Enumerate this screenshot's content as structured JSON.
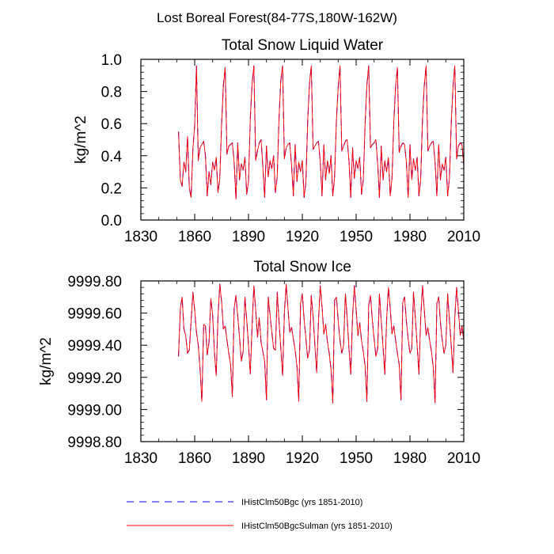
{
  "page": {
    "title": "Lost Boreal Forest(84-77S,180W-162W)"
  },
  "legend": {
    "placement": "bottom",
    "items": [
      {
        "label": "IHistClm50Bgc (yrs 1851-2010)",
        "color": "#0000ff",
        "dash": "dashed"
      },
      {
        "label": "IHistClm50BgcSulman (yrs 1851-2010)",
        "color": "#ff0000",
        "dash": "solid"
      }
    ]
  },
  "chart_data": [
    {
      "type": "line",
      "title": "Total Snow Liquid Water",
      "ylabel": "kg/m^2",
      "xlim": [
        1830,
        2010
      ],
      "ylim": [
        0.0,
        1.0
      ],
      "xticks": [
        1830,
        1860,
        1890,
        1920,
        1950,
        1980,
        2010
      ],
      "xtick_labels": [
        "1830",
        "1860",
        "1890",
        "1920",
        "1950",
        "1980",
        "2010"
      ],
      "yticks": [
        0.0,
        0.2,
        0.4,
        0.6,
        0.8,
        1.0
      ],
      "ytick_labels": [
        "0.0",
        "0.2",
        "0.4",
        "0.6",
        "0.8",
        "1.0"
      ],
      "x_start": 1851,
      "series": [
        {
          "name": "IHistClm50Bgc (yrs 1851-2010)",
          "values": [
            0.55,
            0.25,
            0.21,
            0.36,
            0.3,
            0.52,
            0.2,
            0.14,
            0.44,
            0.59,
            0.96,
            0.37,
            0.45,
            0.47,
            0.49,
            0.4,
            0.15,
            0.3,
            0.22,
            0.36,
            0.31,
            0.39,
            0.17,
            0.26,
            0.6,
            0.84,
            0.95,
            0.41,
            0.46,
            0.47,
            0.48,
            0.36,
            0.13,
            0.48,
            0.25,
            0.35,
            0.31,
            0.39,
            0.16,
            0.24,
            0.63,
            0.85,
            0.96,
            0.37,
            0.43,
            0.48,
            0.5,
            0.33,
            0.14,
            0.46,
            0.27,
            0.37,
            0.32,
            0.4,
            0.17,
            0.27,
            0.63,
            0.87,
            0.96,
            0.38,
            0.45,
            0.47,
            0.48,
            0.34,
            0.15,
            0.47,
            0.24,
            0.36,
            0.3,
            0.37,
            0.14,
            0.24,
            0.62,
            0.85,
            0.96,
            0.44,
            0.46,
            0.48,
            0.49,
            0.36,
            0.15,
            0.47,
            0.25,
            0.37,
            0.29,
            0.4,
            0.15,
            0.27,
            0.62,
            0.83,
            0.96,
            0.43,
            0.46,
            0.49,
            0.5,
            0.37,
            0.14,
            0.45,
            0.26,
            0.37,
            0.32,
            0.39,
            0.16,
            0.25,
            0.6,
            0.84,
            0.96,
            0.45,
            0.47,
            0.48,
            0.5,
            0.35,
            0.14,
            0.46,
            0.25,
            0.37,
            0.3,
            0.39,
            0.15,
            0.26,
            0.61,
            0.83,
            0.95,
            0.42,
            0.46,
            0.48,
            0.47,
            0.36,
            0.14,
            0.47,
            0.25,
            0.38,
            0.31,
            0.39,
            0.15,
            0.26,
            0.63,
            0.84,
            0.96,
            0.43,
            0.46,
            0.48,
            0.49,
            0.36,
            0.15,
            0.47,
            0.25,
            0.35,
            0.31,
            0.39,
            0.15,
            0.26,
            0.6,
            0.83,
            0.96,
            0.38,
            0.46,
            0.48,
            0.47,
            0.34,
            0.15,
            0.44
          ]
        },
        {
          "name": "IHistClm50BgcSulman (yrs 1851-2010)",
          "values": [
            0.55,
            0.25,
            0.21,
            0.36,
            0.3,
            0.52,
            0.2,
            0.14,
            0.44,
            0.59,
            0.96,
            0.37,
            0.45,
            0.47,
            0.49,
            0.4,
            0.15,
            0.3,
            0.22,
            0.36,
            0.31,
            0.39,
            0.17,
            0.26,
            0.6,
            0.84,
            0.95,
            0.41,
            0.46,
            0.47,
            0.48,
            0.36,
            0.13,
            0.48,
            0.25,
            0.35,
            0.31,
            0.39,
            0.16,
            0.24,
            0.63,
            0.85,
            0.96,
            0.37,
            0.43,
            0.48,
            0.5,
            0.33,
            0.14,
            0.46,
            0.27,
            0.37,
            0.32,
            0.4,
            0.17,
            0.27,
            0.63,
            0.87,
            0.96,
            0.38,
            0.45,
            0.47,
            0.48,
            0.34,
            0.15,
            0.47,
            0.24,
            0.36,
            0.3,
            0.37,
            0.14,
            0.24,
            0.62,
            0.85,
            0.96,
            0.44,
            0.46,
            0.48,
            0.49,
            0.36,
            0.15,
            0.47,
            0.25,
            0.37,
            0.29,
            0.4,
            0.15,
            0.27,
            0.62,
            0.83,
            0.96,
            0.43,
            0.46,
            0.49,
            0.5,
            0.37,
            0.14,
            0.45,
            0.26,
            0.37,
            0.32,
            0.39,
            0.16,
            0.25,
            0.6,
            0.84,
            0.96,
            0.45,
            0.47,
            0.48,
            0.5,
            0.35,
            0.14,
            0.46,
            0.25,
            0.37,
            0.3,
            0.39,
            0.15,
            0.26,
            0.61,
            0.83,
            0.95,
            0.42,
            0.46,
            0.48,
            0.47,
            0.36,
            0.14,
            0.47,
            0.25,
            0.38,
            0.31,
            0.39,
            0.15,
            0.26,
            0.63,
            0.84,
            0.96,
            0.43,
            0.46,
            0.48,
            0.49,
            0.36,
            0.15,
            0.47,
            0.25,
            0.35,
            0.31,
            0.39,
            0.15,
            0.26,
            0.6,
            0.83,
            0.96,
            0.38,
            0.46,
            0.48,
            0.47,
            0.34,
            0.15,
            0.44
          ]
        }
      ]
    },
    {
      "type": "line",
      "title": "Total Snow Ice",
      "ylabel": "kg/m^2",
      "xlim": [
        1830,
        2010
      ],
      "ylim": [
        9998.8,
        9999.8
      ],
      "xticks": [
        1830,
        1860,
        1890,
        1920,
        1950,
        1980,
        2010
      ],
      "xtick_labels": [
        "1830",
        "1860",
        "1890",
        "1920",
        "1950",
        "1980",
        "2010"
      ],
      "yticks": [
        9998.8,
        9999.0,
        9999.2,
        9999.4,
        9999.6,
        9999.8
      ],
      "ytick_labels": [
        "9998.80",
        "9999.00",
        "9999.20",
        "9999.40",
        "9999.60",
        "9999.80"
      ],
      "x_start": 1851,
      "series": [
        {
          "name": "IHistClm50Bgc (yrs 1851-2010)",
          "values": [
            9999.33,
            9999.63,
            9999.7,
            9999.5,
            9999.46,
            9999.35,
            9999.37,
            9999.55,
            9999.73,
            9999.62,
            9999.48,
            9999.4,
            9999.25,
            9999.05,
            9999.53,
            9999.52,
            9999.34,
            9999.42,
            9999.69,
            9999.59,
            9999.36,
            9999.21,
            9999.58,
            9999.78,
            9999.67,
            9999.5,
            9999.52,
            9999.43,
            9999.35,
            9999.28,
            9999.08,
            9999.63,
            9999.71,
            9999.58,
            9999.45,
            9999.3,
            9999.36,
            9999.7,
            9999.56,
            9999.4,
            9999.22,
            9999.52,
            9999.77,
            9999.62,
            9999.45,
            9999.57,
            9999.42,
            9999.36,
            9999.3,
            9999.06,
            9999.7,
            9999.59,
            9999.48,
            9999.38,
            9999.37,
            9999.73,
            9999.55,
            9999.38,
            9999.21,
            9999.6,
            9999.78,
            9999.63,
            9999.48,
            9999.51,
            9999.44,
            9999.37,
            9999.27,
            9999.05,
            9999.66,
            9999.72,
            9999.56,
            9999.44,
            9999.32,
            9999.37,
            9999.71,
            9999.58,
            9999.4,
            9999.23,
            9999.55,
            9999.77,
            9999.64,
            9999.47,
            9999.53,
            9999.42,
            9999.35,
            9999.25,
            9999.04,
            9999.68,
            9999.7,
            9999.55,
            9999.43,
            9999.35,
            9999.4,
            9999.72,
            9999.57,
            9999.38,
            9999.22,
            9999.58,
            9999.77,
            9999.62,
            9999.46,
            9999.54,
            9999.43,
            9999.36,
            9999.27,
            9999.05,
            9999.65,
            9999.71,
            9999.56,
            9999.44,
            9999.33,
            9999.38,
            9999.72,
            9999.55,
            9999.39,
            9999.22,
            9999.56,
            9999.76,
            9999.63,
            9999.47,
            9999.52,
            9999.43,
            9999.35,
            9999.28,
            9999.06,
            9999.67,
            9999.7,
            9999.55,
            9999.44,
            9999.35,
            9999.38,
            9999.73,
            9999.57,
            9999.4,
            9999.22,
            9999.57,
            9999.77,
            9999.62,
            9999.46,
            9999.51,
            9999.43,
            9999.36,
            9999.26,
            9999.04,
            9999.66,
            9999.7,
            9999.54,
            9999.43,
            9999.35,
            9999.4,
            9999.72,
            9999.56,
            9999.4,
            9999.23,
            9999.57,
            9999.76,
            9999.62,
            9999.46,
            9999.52,
            9999.43,
            9999.35,
            9999.28,
            9999.05,
            9999.68
          ]
        },
        {
          "name": "IHistClm50BgcSulman (yrs 1851-2010)",
          "values": [
            9999.33,
            9999.63,
            9999.7,
            9999.5,
            9999.46,
            9999.35,
            9999.37,
            9999.55,
            9999.73,
            9999.62,
            9999.48,
            9999.4,
            9999.25,
            9999.05,
            9999.53,
            9999.52,
            9999.34,
            9999.42,
            9999.69,
            9999.59,
            9999.36,
            9999.21,
            9999.58,
            9999.78,
            9999.67,
            9999.5,
            9999.52,
            9999.43,
            9999.35,
            9999.28,
            9999.08,
            9999.63,
            9999.71,
            9999.58,
            9999.45,
            9999.3,
            9999.36,
            9999.7,
            9999.56,
            9999.4,
            9999.22,
            9999.52,
            9999.77,
            9999.62,
            9999.45,
            9999.57,
            9999.42,
            9999.36,
            9999.3,
            9999.06,
            9999.7,
            9999.59,
            9999.48,
            9999.38,
            9999.37,
            9999.73,
            9999.55,
            9999.38,
            9999.21,
            9999.6,
            9999.78,
            9999.63,
            9999.48,
            9999.51,
            9999.44,
            9999.37,
            9999.27,
            9999.05,
            9999.66,
            9999.72,
            9999.56,
            9999.44,
            9999.32,
            9999.37,
            9999.71,
            9999.58,
            9999.4,
            9999.23,
            9999.55,
            9999.77,
            9999.64,
            9999.47,
            9999.53,
            9999.42,
            9999.35,
            9999.25,
            9999.04,
            9999.68,
            9999.7,
            9999.55,
            9999.43,
            9999.35,
            9999.4,
            9999.72,
            9999.57,
            9999.38,
            9999.22,
            9999.58,
            9999.77,
            9999.62,
            9999.46,
            9999.54,
            9999.43,
            9999.36,
            9999.27,
            9999.05,
            9999.65,
            9999.71,
            9999.56,
            9999.44,
            9999.33,
            9999.38,
            9999.72,
            9999.55,
            9999.39,
            9999.22,
            9999.56,
            9999.76,
            9999.63,
            9999.47,
            9999.52,
            9999.43,
            9999.35,
            9999.28,
            9999.06,
            9999.67,
            9999.7,
            9999.55,
            9999.44,
            9999.35,
            9999.38,
            9999.73,
            9999.57,
            9999.4,
            9999.22,
            9999.57,
            9999.77,
            9999.62,
            9999.46,
            9999.51,
            9999.43,
            9999.36,
            9999.26,
            9999.04,
            9999.66,
            9999.7,
            9999.54,
            9999.43,
            9999.35,
            9999.4,
            9999.72,
            9999.56,
            9999.4,
            9999.23,
            9999.57,
            9999.76,
            9999.62,
            9999.46,
            9999.52,
            9999.43,
            9999.35,
            9999.28,
            9999.05,
            9999.68
          ]
        }
      ]
    }
  ]
}
